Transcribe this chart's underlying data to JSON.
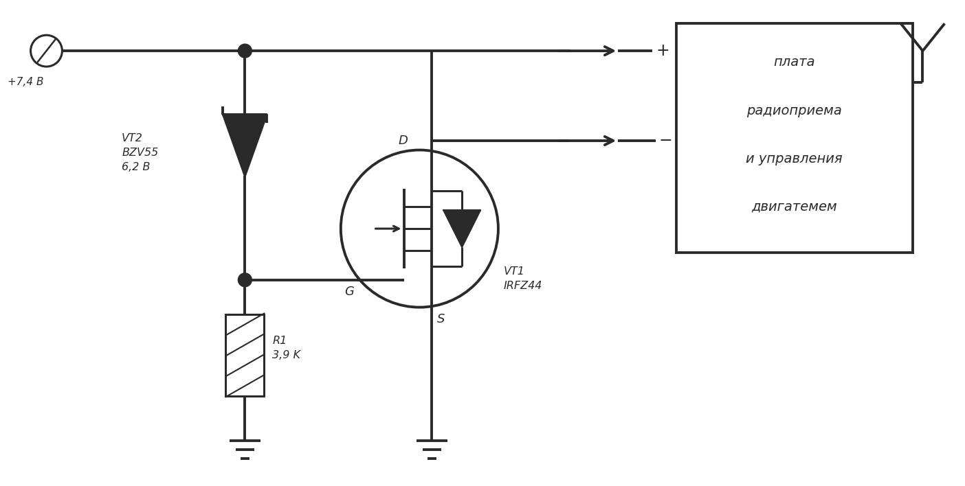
{
  "bg_color": "#ffffff",
  "line_color": "#2a2a2a",
  "text_color": "#2a2a2a",
  "fig_width": 14.04,
  "fig_height": 7.08,
  "labels": {
    "battery": "+7,4 В",
    "vt2": "VT2\nBZV55\n6,2 В",
    "r1": "R1\n3,9 K",
    "vt1": "VT1\nIRFZ44",
    "box_line1": "плата",
    "box_line2": "радиоприема",
    "box_line3": "и управления",
    "box_line4": "двигатемем",
    "plus": "+",
    "minus": "−",
    "D_label": "D",
    "G_label": "G",
    "S_label": "S"
  }
}
